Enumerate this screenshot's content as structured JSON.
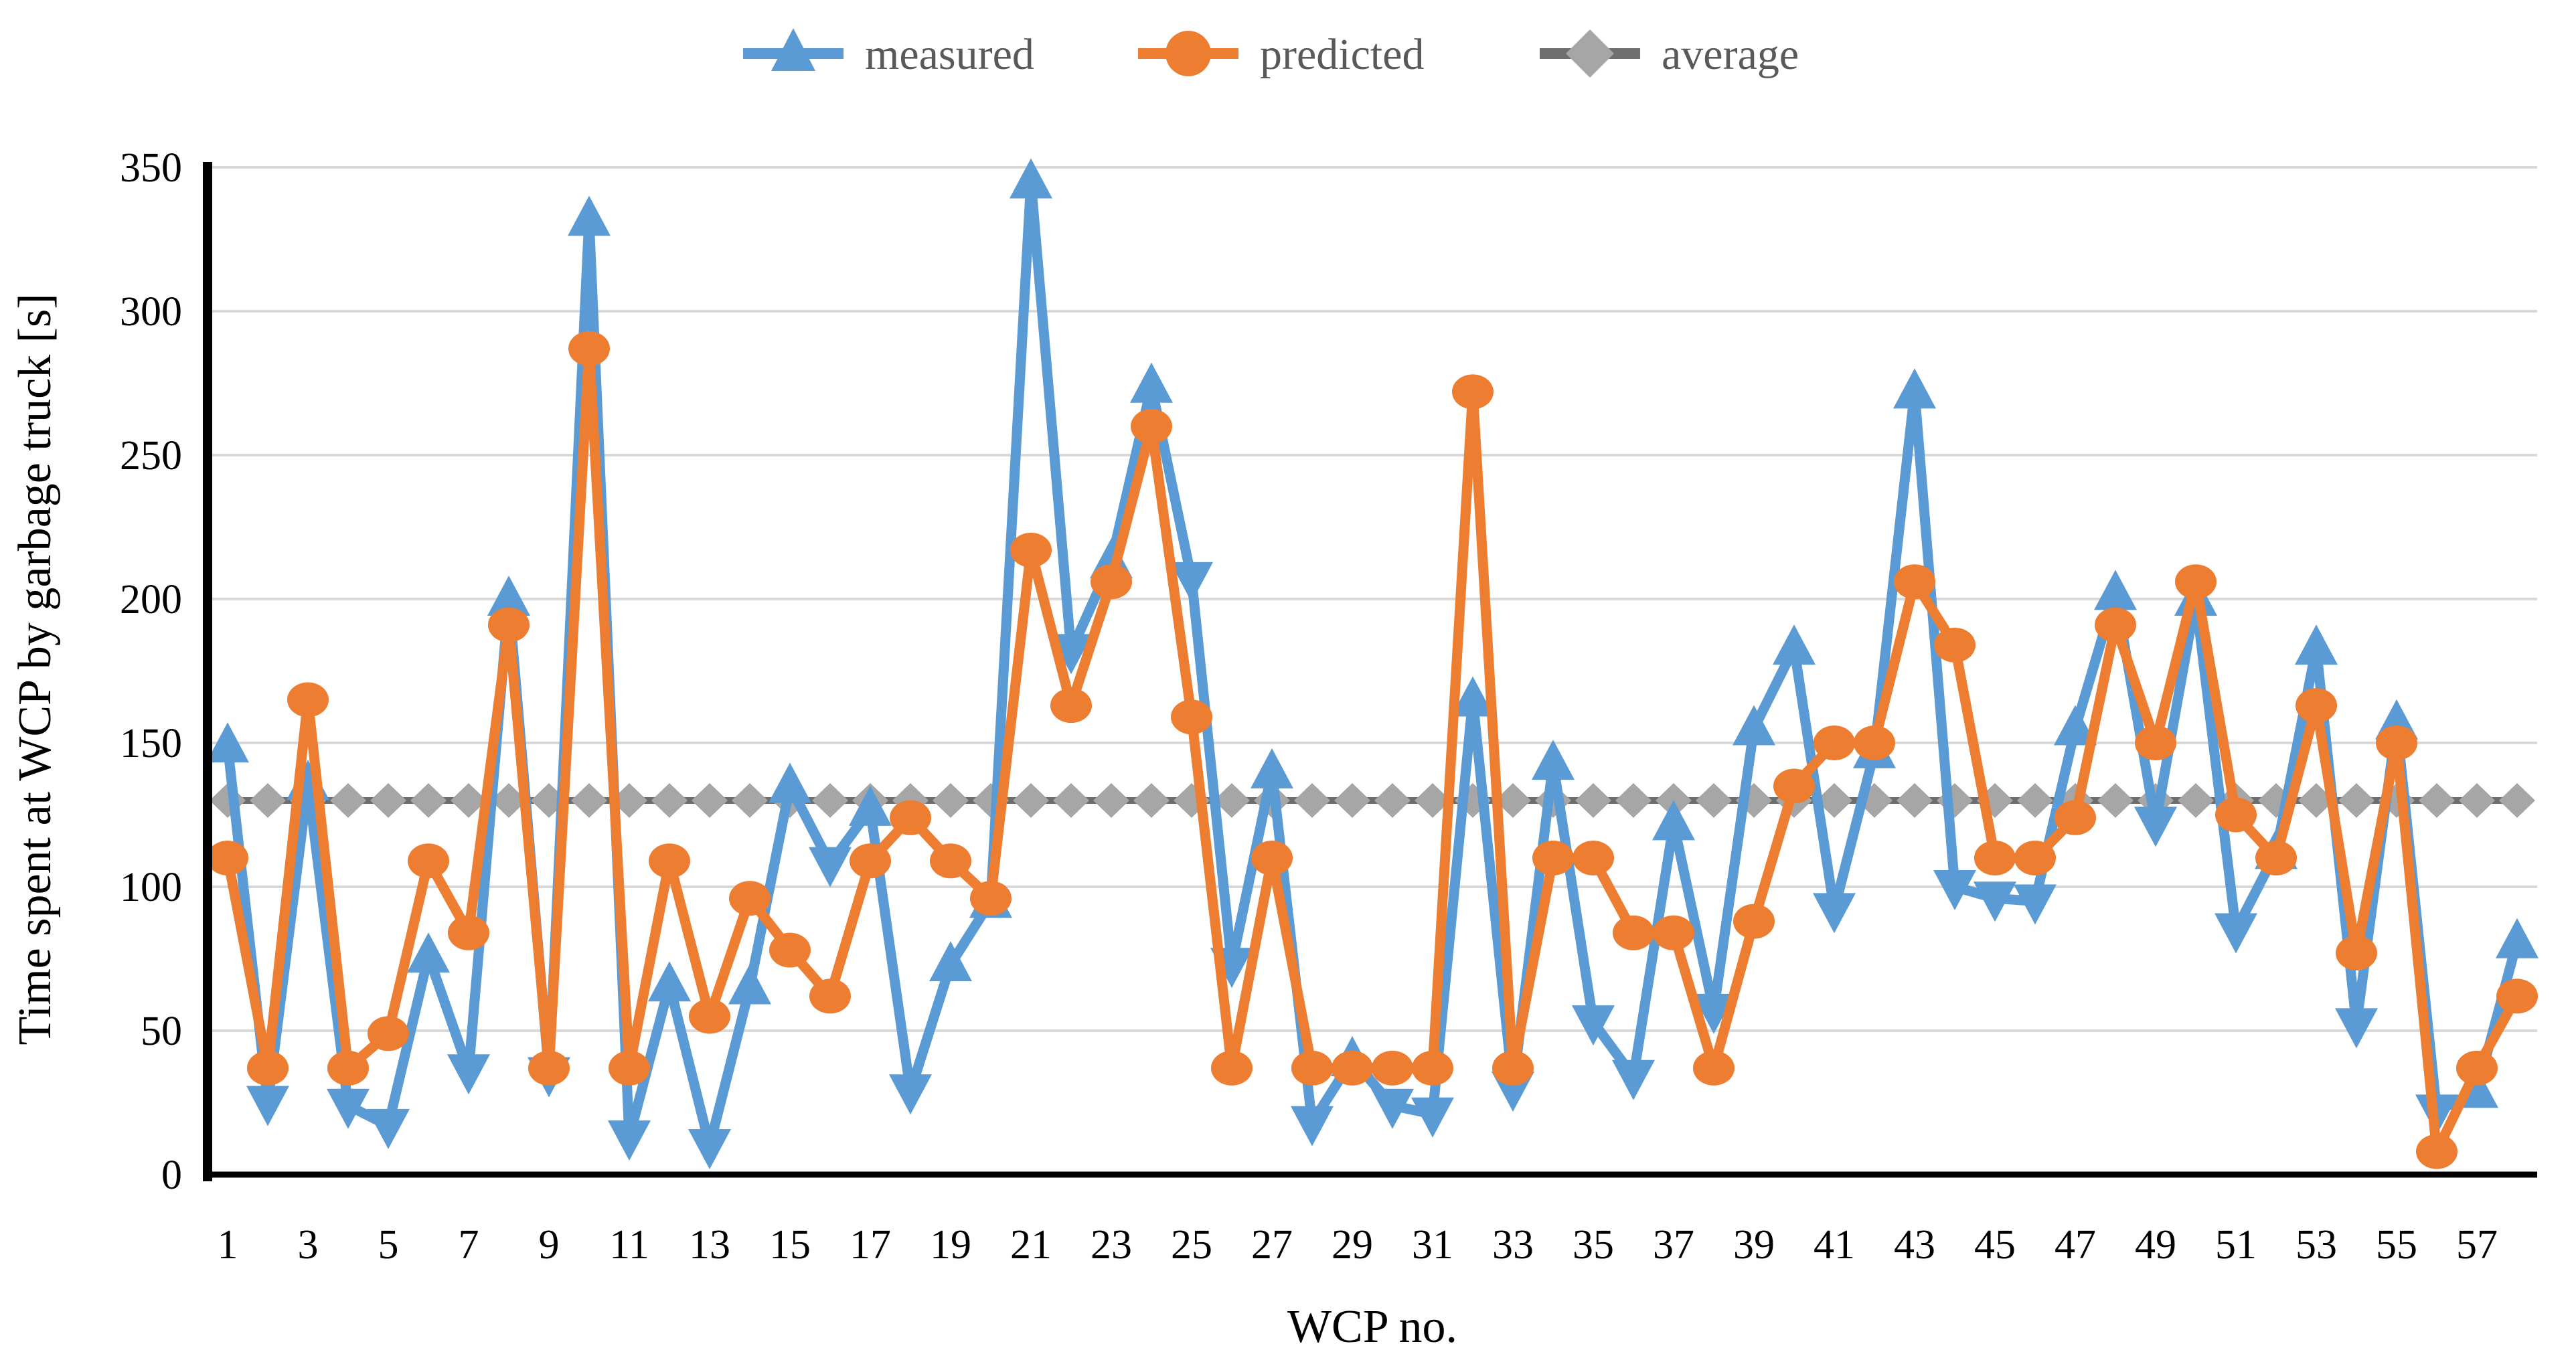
{
  "legend": {
    "measured_label": "measured",
    "predicted_label": "predicted",
    "average_label": "average",
    "text_color": "#595959"
  },
  "chart_data": {
    "type": "line",
    "title": "",
    "xlabel": "WCP no.",
    "ylabel": "Time spent at WCP by garbage truck [s]",
    "ylim": [
      0,
      350
    ],
    "y_ticks": [
      0,
      50,
      100,
      150,
      200,
      250,
      300,
      350
    ],
    "x_tick_labels": [
      "1",
      "3",
      "5",
      "7",
      "9",
      "11",
      "13",
      "15",
      "17",
      "19",
      "21",
      "23",
      "25",
      "27",
      "29",
      "31",
      "33",
      "35",
      "37",
      "39",
      "41",
      "43",
      "45",
      "47",
      "49",
      "51",
      "53",
      "55",
      "57"
    ],
    "categories": [
      1,
      2,
      3,
      4,
      5,
      6,
      7,
      8,
      9,
      10,
      11,
      12,
      13,
      14,
      15,
      16,
      17,
      18,
      19,
      20,
      21,
      22,
      23,
      24,
      25,
      26,
      27,
      28,
      29,
      30,
      31,
      32,
      33,
      34,
      35,
      36,
      37,
      38,
      39,
      40,
      41,
      42,
      43,
      44,
      45,
      46,
      47,
      48,
      49,
      50,
      51,
      52,
      53,
      54,
      55,
      56,
      57,
      58
    ],
    "grid": true,
    "legend_position": "top",
    "gridline_color": "#D9D9D9",
    "axis_color": "#000000",
    "series": [
      {
        "name": "measured",
        "marker": "triangle",
        "color": "#5B9BD5",
        "values": [
          149,
          25,
          136,
          24,
          17,
          76,
          36,
          200,
          35,
          332,
          13,
          66,
          10,
          65,
          135,
          108,
          127,
          29,
          73,
          95,
          345,
          182,
          213,
          274,
          207,
          73,
          140,
          18,
          40,
          24,
          21,
          165,
          30,
          143,
          53,
          34,
          122,
          57,
          155,
          183,
          92,
          147,
          272,
          100,
          96,
          95,
          155,
          202,
          122,
          200,
          85,
          112,
          183,
          52,
          157,
          22,
          29,
          81
        ]
      },
      {
        "name": "predicted",
        "marker": "circle",
        "color": "#ED7D31",
        "values": [
          110,
          37,
          165,
          37,
          49,
          109,
          84,
          191,
          37,
          287,
          37,
          109,
          55,
          96,
          78,
          62,
          109,
          124,
          109,
          96,
          217,
          163,
          206,
          260,
          159,
          37,
          110,
          37,
          37,
          37,
          37,
          272,
          37,
          110,
          110,
          84,
          84,
          37,
          88,
          135,
          150,
          150,
          206,
          184,
          110,
          110,
          124,
          191,
          150,
          206,
          125,
          110,
          163,
          77,
          150,
          8,
          37,
          62
        ]
      },
      {
        "name": "average",
        "marker": "diamond",
        "color": "#6E6E6E",
        "marker_color": "#A6A6A6",
        "value": 130
      }
    ]
  }
}
